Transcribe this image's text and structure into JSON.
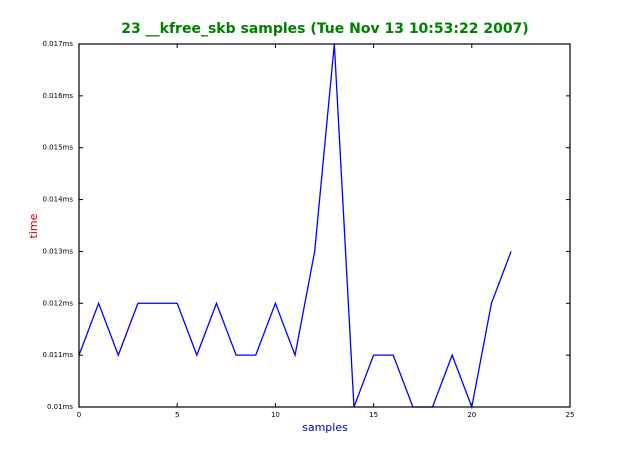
{
  "chart_data": {
    "type": "line",
    "title": "23 __kfree_skb samples (Tue Nov 13 10:53:22 2007)",
    "xlabel": "samples",
    "ylabel": "time",
    "x": [
      0,
      1,
      2,
      3,
      4,
      5,
      6,
      7,
      8,
      9,
      10,
      11,
      12,
      13,
      14,
      15,
      16,
      17,
      18,
      19,
      20,
      21,
      22
    ],
    "series": [
      {
        "color": "#0000ff",
        "values": [
          0.011,
          0.012,
          0.011,
          0.012,
          0.012,
          0.012,
          0.011,
          0.012,
          0.011,
          0.011,
          0.012,
          0.011,
          0.013,
          0.017,
          0.01,
          0.011,
          0.011,
          0.01,
          0.01,
          0.011,
          0.01,
          0.012,
          0.013
        ]
      }
    ],
    "xlim": [
      0,
      25
    ],
    "xticks": [
      0,
      5,
      10,
      15,
      20,
      25
    ],
    "ylim": [
      0.01,
      0.017
    ],
    "yticks": [
      {
        "value": 0.01,
        "label": "0.01ms"
      },
      {
        "value": 0.011,
        "label": "0.011ms"
      },
      {
        "value": 0.012,
        "label": "0.012ms"
      },
      {
        "value": 0.013,
        "label": "0.013ms"
      },
      {
        "value": 0.014,
        "label": "0.014ms"
      },
      {
        "value": 0.015,
        "label": "0.015ms"
      },
      {
        "value": 0.016,
        "label": "0.016ms"
      },
      {
        "value": 0.017,
        "label": "0.017ms"
      }
    ],
    "grid": false
  }
}
